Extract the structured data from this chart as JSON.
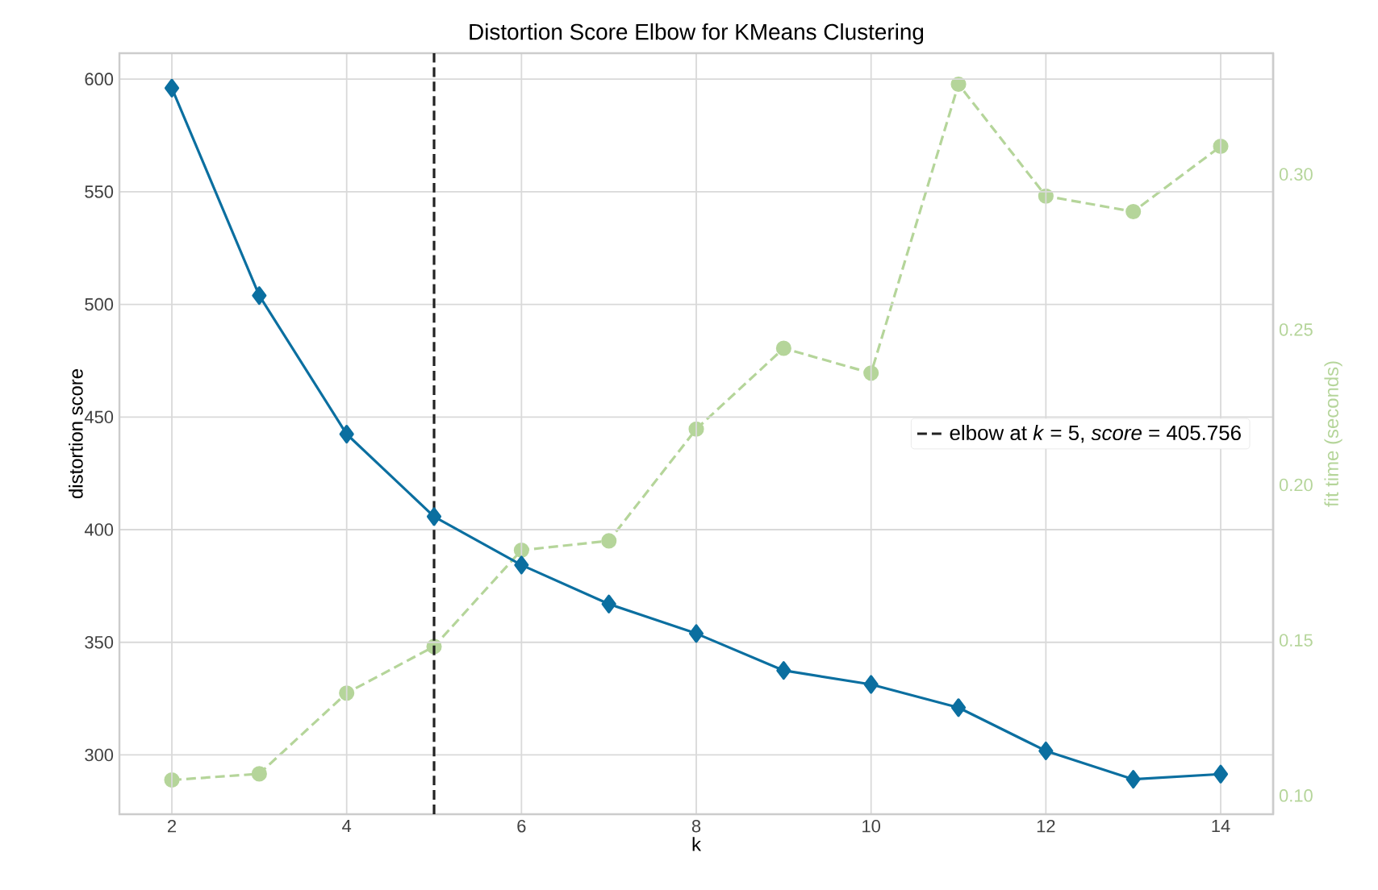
{
  "chart_data": {
    "type": "line",
    "title": "Distortion Score Elbow for KMeans Clustering",
    "xlabel": "k",
    "ylabel": "distortion score",
    "y2label": "fit time (seconds)",
    "x": [
      2,
      3,
      4,
      5,
      6,
      7,
      8,
      9,
      10,
      11,
      12,
      13,
      14
    ],
    "series": [
      {
        "color": "#0b6fa0",
        "marker": "diamond",
        "line_style": "solid",
        "values": [
          596,
          503.9,
          442.4,
          405.8,
          384.3,
          367.0,
          353.9,
          337.5,
          331.3,
          321.0,
          301.8,
          289.2,
          291.5
        ]
      },
      {
        "color": "#b5d59a",
        "marker": "circle",
        "line_style": "dashed",
        "axis": "y2",
        "values": [
          0.105,
          0.107,
          0.133,
          0.148,
          0.179,
          0.182,
          0.218,
          0.244,
          0.236,
          0.329,
          0.293,
          0.288,
          0.309
        ]
      }
    ],
    "xlim": [
      1.4,
      14.6
    ],
    "xticks": [
      2,
      4,
      6,
      8,
      10,
      12,
      14
    ],
    "ylim": [
      273.7,
      611.5
    ],
    "yticks": [
      300,
      350,
      400,
      450,
      500,
      550,
      600
    ],
    "y2lim": [
      0.094,
      0.339
    ],
    "y2ticks": [
      {
        "value": 0.1,
        "label": "0.10"
      },
      {
        "value": 0.15,
        "label": "0.15"
      },
      {
        "value": 0.2,
        "label": "0.20"
      },
      {
        "value": 0.25,
        "label": "0.25"
      },
      {
        "value": 0.3,
        "label": "0.30"
      }
    ],
    "ref_lines": [
      {
        "axis": "x",
        "value": 5,
        "label": "elbow at *k* = 5, *score* = 405.756",
        "color": "#222222",
        "line_style": "dashed"
      }
    ],
    "grid": true,
    "legend": "right"
  }
}
